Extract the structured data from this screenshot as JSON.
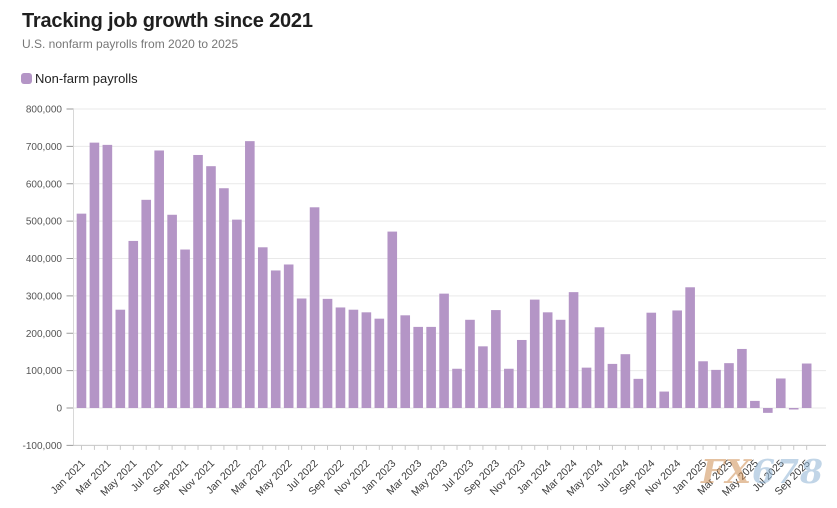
{
  "header": {
    "title": "Tracking job growth since 2021",
    "subtitle": "U.S. nonfarm payrolls from 2020 to 2025"
  },
  "legend": {
    "label": "Non-farm payrolls",
    "swatch_color": "#b495c6"
  },
  "watermark": {
    "prefix": "FX",
    "suffix": "678"
  },
  "chart_data": {
    "type": "bar",
    "title": "Tracking job growth since 2021",
    "subtitle": "U.S. nonfarm payrolls from 2020 to 2025",
    "series_name": "Non-farm payrolls",
    "bar_color": "#b495c6",
    "grid": true,
    "legend_position": "top-left",
    "ylabel": "",
    "xlabel": "",
    "ylim": [
      -100000,
      800000
    ],
    "y_tick_step": 100000,
    "y_tick_labels": [
      "800,000",
      "700,000",
      "600,000",
      "500,000",
      "400,000",
      "300,000",
      "200,000",
      "100,000",
      "0",
      "-100,000"
    ],
    "x_tick_every": 2,
    "categories": [
      "Jan 2021",
      "Feb 2021",
      "Mar 2021",
      "Apr 2021",
      "May 2021",
      "Jun 2021",
      "Jul 2021",
      "Aug 2021",
      "Sep 2021",
      "Oct 2021",
      "Nov 2021",
      "Dec 2021",
      "Jan 2022",
      "Feb 2022",
      "Mar 2022",
      "Apr 2022",
      "May 2022",
      "Jun 2022",
      "Jul 2022",
      "Aug 2022",
      "Sep 2022",
      "Oct 2022",
      "Nov 2022",
      "Dec 2022",
      "Jan 2023",
      "Feb 2023",
      "Mar 2023",
      "Apr 2023",
      "May 2023",
      "Jun 2023",
      "Jul 2023",
      "Aug 2023",
      "Sep 2023",
      "Oct 2023",
      "Nov 2023",
      "Dec 2023",
      "Jan 2024",
      "Feb 2024",
      "Mar 2024",
      "Apr 2024",
      "May 2024",
      "Jun 2024",
      "Jul 2024",
      "Aug 2024",
      "Sep 2024",
      "Oct 2024",
      "Nov 2024",
      "Dec 2024",
      "Jan 2025",
      "Feb 2025",
      "Mar 2025",
      "Apr 2025",
      "May 2025",
      "Jun 2025",
      "Jul 2025",
      "Aug 2025",
      "Sep 2025"
    ],
    "values": [
      520000,
      710000,
      704000,
      263000,
      447000,
      557000,
      689000,
      517000,
      424000,
      677000,
      647000,
      588000,
      504000,
      714000,
      430000,
      368000,
      384000,
      293000,
      537000,
      292000,
      269000,
      263000,
      256000,
      239000,
      472000,
      248000,
      217000,
      217000,
      306000,
      105000,
      236000,
      165000,
      262000,
      105000,
      182000,
      290000,
      256000,
      236000,
      310000,
      108000,
      216000,
      118000,
      144000,
      78000,
      255000,
      44000,
      261000,
      323000,
      125000,
      102000,
      120000,
      158000,
      19000,
      -13000,
      79000,
      -4000,
      119000
    ]
  }
}
